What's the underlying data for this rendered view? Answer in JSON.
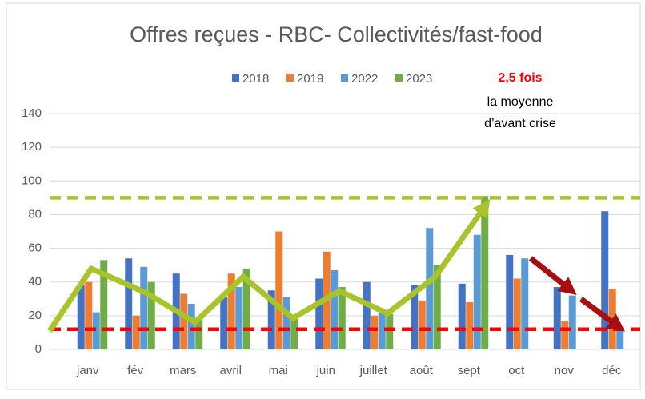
{
  "chart_data": {
    "type": "bar",
    "title": "Offres reçues - RBC- Collectivités/fast-food",
    "categories": [
      "janv",
      "fév",
      "mars",
      "avril",
      "mai",
      "juin",
      "juillet",
      "août",
      "sept",
      "oct",
      "nov",
      "déc"
    ],
    "series": [
      {
        "name": "2018",
        "color": "#4472c4",
        "values": [
          38,
          54,
          45,
          31,
          35,
          42,
          40,
          38,
          39,
          56,
          37,
          82
        ]
      },
      {
        "name": "2019",
        "color": "#ed7d31",
        "values": [
          40,
          20,
          33,
          45,
          70,
          58,
          20,
          29,
          28,
          42,
          17,
          36
        ]
      },
      {
        "name": "2022",
        "color": "#5b9bd5",
        "values": [
          22,
          49,
          27,
          37,
          31,
          47,
          22,
          72,
          68,
          54,
          32,
          13
        ]
      },
      {
        "name": "2023",
        "color": "#70ad47",
        "values": [
          53,
          40,
          18,
          48,
          18,
          37,
          21,
          50,
          91,
          null,
          null,
          null
        ]
      }
    ],
    "ylim": [
      0,
      140
    ],
    "yticks": [
      0,
      20,
      40,
      60,
      80,
      100,
      120,
      140
    ],
    "grid": true,
    "legend": "top",
    "reference_lines": [
      {
        "value": 90,
        "color": "#a9c32a"
      },
      {
        "value": 12,
        "color": "#ff0000"
      }
    ],
    "annotation": {
      "highlight": "2,5 fois",
      "lines": [
        "la moyenne",
        "d’avant crise"
      ]
    }
  }
}
